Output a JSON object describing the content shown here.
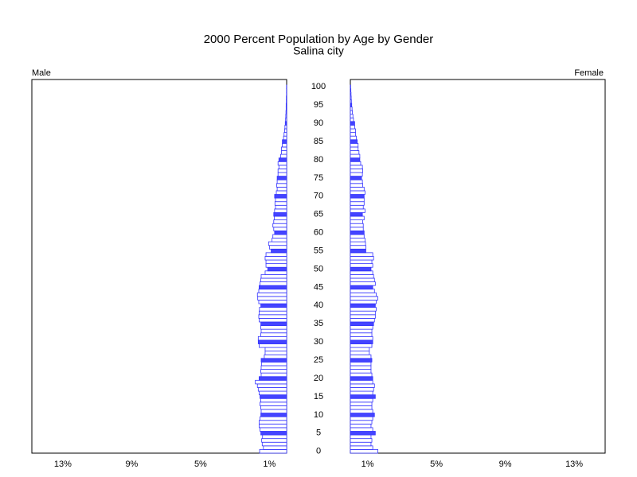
{
  "chart_data": {
    "type": "pyramid",
    "title": "2000 Percent Population by Age by Gender",
    "subtitle": "Salina city",
    "categories": [
      0,
      null,
      null,
      null,
      null,
      5,
      null,
      null,
      null,
      null,
      10,
      null,
      null,
      null,
      null,
      15,
      null,
      null,
      null,
      null,
      20,
      null,
      null,
      null,
      null,
      25,
      null,
      null,
      null,
      null,
      30,
      null,
      null,
      null,
      null,
      35,
      null,
      null,
      null,
      null,
      40,
      null,
      null,
      null,
      null,
      45,
      null,
      null,
      null,
      null,
      50,
      null,
      null,
      null,
      null,
      55,
      null,
      null,
      null,
      null,
      60,
      null,
      null,
      null,
      null,
      65,
      null,
      null,
      null,
      null,
      70,
      null,
      null,
      null,
      null,
      75,
      null,
      null,
      null,
      null,
      80,
      null,
      null,
      null,
      null,
      85,
      null,
      null,
      null,
      null,
      90,
      null,
      null,
      null,
      null,
      95,
      null,
      null,
      null,
      null,
      100
    ],
    "series": [
      {
        "name": "Male",
        "values": [
          1.57,
          1.35,
          1.42,
          1.45,
          1.4,
          1.5,
          1.55,
          1.6,
          1.6,
          1.55,
          1.5,
          1.48,
          1.5,
          1.55,
          1.5,
          1.55,
          1.6,
          1.65,
          1.7,
          1.82,
          1.6,
          1.48,
          1.5,
          1.48,
          1.45,
          1.48,
          1.3,
          1.25,
          1.25,
          1.6,
          1.65,
          1.65,
          1.5,
          1.48,
          1.5,
          1.5,
          1.6,
          1.62,
          1.6,
          1.58,
          1.5,
          1.62,
          1.68,
          1.7,
          1.62,
          1.6,
          1.55,
          1.5,
          1.48,
          1.25,
          1.1,
          1.2,
          1.2,
          1.25,
          1.2,
          0.9,
          1.0,
          1.05,
          0.85,
          0.8,
          0.7,
          0.75,
          0.8,
          0.75,
          0.72,
          0.75,
          0.7,
          0.65,
          0.68,
          0.65,
          0.7,
          0.6,
          0.55,
          0.58,
          0.55,
          0.55,
          0.5,
          0.5,
          0.45,
          0.5,
          0.45,
          0.35,
          0.3,
          0.3,
          0.25,
          0.25,
          0.18,
          0.15,
          0.12,
          0.1,
          0.08,
          0.06,
          0.05,
          0.04,
          0.03,
          0.03,
          0.02,
          0.02,
          0.01,
          0.01,
          0.01
        ]
      },
      {
        "name": "Female",
        "values": [
          1.6,
          1.3,
          1.2,
          1.25,
          1.2,
          1.45,
          1.3,
          1.2,
          1.25,
          1.3,
          1.4,
          1.3,
          1.25,
          1.25,
          1.3,
          1.45,
          1.3,
          1.35,
          1.4,
          1.3,
          1.3,
          1.25,
          1.2,
          1.2,
          1.2,
          1.25,
          1.2,
          1.1,
          1.1,
          1.25,
          1.3,
          1.3,
          1.25,
          1.25,
          1.3,
          1.35,
          1.4,
          1.45,
          1.45,
          1.5,
          1.45,
          1.5,
          1.6,
          1.5,
          1.4,
          1.3,
          1.45,
          1.4,
          1.35,
          1.3,
          1.2,
          1.3,
          1.25,
          1.35,
          1.3,
          0.9,
          0.9,
          0.88,
          0.85,
          0.8,
          0.8,
          0.75,
          0.75,
          0.72,
          0.8,
          0.7,
          0.85,
          0.75,
          0.8,
          0.8,
          0.8,
          0.85,
          0.8,
          0.72,
          0.7,
          0.65,
          0.7,
          0.72,
          0.7,
          0.6,
          0.55,
          0.55,
          0.5,
          0.45,
          0.45,
          0.4,
          0.35,
          0.3,
          0.3,
          0.25,
          0.25,
          0.18,
          0.15,
          0.12,
          0.1,
          0.08,
          0.06,
          0.05,
          0.04,
          0.03,
          0.02
        ]
      }
    ],
    "xlim": [
      0,
      14.8
    ],
    "xticks": [
      {
        "value": 1,
        "label": "1%"
      },
      {
        "value": 5,
        "label": "5%"
      },
      {
        "value": 9,
        "label": "9%"
      },
      {
        "value": 13,
        "label": "13%"
      }
    ],
    "bar_color": "#ffffff",
    "edge_color": "#3333ff",
    "highlight_color": "#4444ff",
    "highlight_every": 5
  }
}
